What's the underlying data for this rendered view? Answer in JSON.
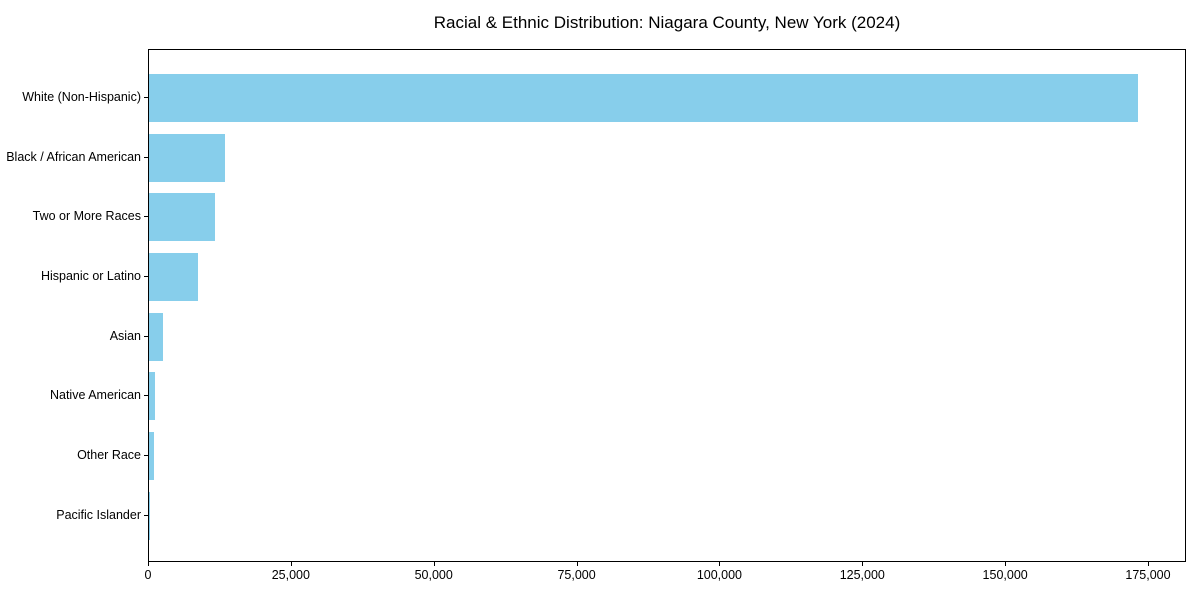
{
  "chart_data": {
    "type": "bar",
    "orientation": "horizontal",
    "title": "Racial & Ethnic Distribution: Niagara County, New York (2024)",
    "categories": [
      "White (Non-Hispanic)",
      "Black / African American",
      "Two or More Races",
      "Hispanic or Latino",
      "Asian",
      "Native American",
      "Other Race",
      "Pacific Islander"
    ],
    "values": [
      173000,
      13300,
      11500,
      8600,
      2500,
      1100,
      950,
      50
    ],
    "xlabel": "",
    "ylabel": "",
    "xlim": [
      0,
      181650
    ],
    "x_ticks": [
      0,
      25000,
      50000,
      75000,
      100000,
      125000,
      150000,
      175000
    ],
    "x_tick_labels": [
      "0",
      "25,000",
      "50,000",
      "75,000",
      "100,000",
      "125,000",
      "150,000",
      "175,000"
    ],
    "bar_color": "#87CEEB",
    "grid": false,
    "legend": null
  }
}
